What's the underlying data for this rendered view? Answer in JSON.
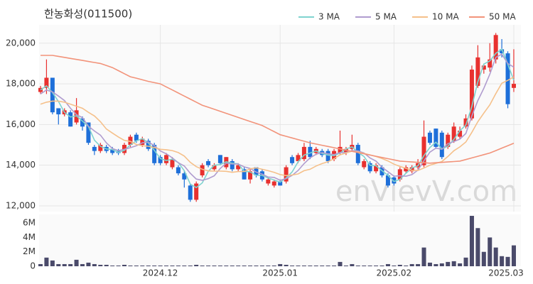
{
  "chart_data": [
    {
      "type": "candlestick",
      "title": "한농화성(011500)",
      "open": [
        17600,
        17800,
        18300,
        16800,
        16500,
        16600,
        16100,
        16300,
        16100,
        14900,
        14700,
        14900,
        14800,
        14700,
        14600,
        15000,
        15500,
        15000,
        15200,
        15000,
        14400,
        14100,
        13900,
        13900,
        13600,
        13000,
        12300,
        13500,
        14200,
        13800,
        14500,
        13900,
        14200,
        13800,
        13800,
        13300,
        13900,
        13700,
        13100,
        13000,
        13200,
        13200,
        14400,
        14200,
        14300,
        14900,
        14600,
        14700,
        14700,
        14300,
        14600,
        14600,
        14800,
        15000,
        13900,
        14100,
        13700,
        13900,
        13500,
        13400,
        13300,
        13700,
        13700,
        13900,
        14000,
        15600,
        15800,
        15600,
        14900,
        15200,
        15400,
        15900,
        16300,
        17900,
        18700,
        18800,
        19200,
        19700,
        19500,
        17800
      ],
      "high": [
        17900,
        19200,
        18300,
        16800,
        16800,
        16700,
        17300,
        16400,
        16100,
        15000,
        15100,
        15000,
        14900,
        14800,
        15100,
        15500,
        15600,
        15400,
        15300,
        15100,
        14500,
        14600,
        14400,
        14000,
        13700,
        13100,
        13200,
        14100,
        14300,
        14100,
        14500,
        14400,
        14300,
        14100,
        13900,
        13800,
        13900,
        13800,
        13400,
        13300,
        13300,
        14000,
        14500,
        14600,
        15100,
        15200,
        14900,
        14800,
        14800,
        14800,
        15700,
        14900,
        15500,
        15100,
        14300,
        14200,
        14100,
        14000,
        13600,
        13500,
        13900,
        14000,
        14000,
        14300,
        16200,
        15700,
        15800,
        15700,
        15600,
        16100,
        15900,
        16500,
        18900,
        19900,
        19000,
        20000,
        20500,
        20200,
        19600,
        19700
      ],
      "low": [
        17500,
        17500,
        16500,
        16000,
        16400,
        15900,
        16000,
        15700,
        15000,
        14500,
        14600,
        14600,
        14500,
        14500,
        14500,
        14900,
        15100,
        14900,
        14700,
        14000,
        14000,
        14000,
        13800,
        13500,
        12900,
        12200,
        12200,
        13400,
        13900,
        13700,
        14000,
        13800,
        13700,
        13700,
        13300,
        13100,
        13400,
        13200,
        13000,
        12900,
        13000,
        13100,
        14000,
        14100,
        14200,
        14300,
        14500,
        14400,
        14100,
        14200,
        14500,
        14500,
        14700,
        14000,
        13800,
        13600,
        13600,
        13400,
        12900,
        13000,
        13200,
        13600,
        13600,
        13800,
        13900,
        15000,
        14800,
        14300,
        14800,
        15100,
        15300,
        15800,
        16200,
        17800,
        18500,
        18600,
        19000,
        19300,
        16800,
        17600
      ],
      "close": [
        17800,
        18300,
        16600,
        16500,
        16700,
        15900,
        16700,
        15900,
        15100,
        14700,
        15000,
        14700,
        14600,
        14600,
        15000,
        15400,
        15200,
        15300,
        14800,
        14100,
        14100,
        14500,
        14300,
        13600,
        13300,
        12300,
        13100,
        14000,
        14000,
        14000,
        14100,
        14400,
        13800,
        14000,
        13300,
        13700,
        13500,
        13300,
        13300,
        13200,
        13000,
        13900,
        14100,
        14500,
        14900,
        14400,
        14800,
        14500,
        14200,
        14700,
        14900,
        14800,
        15000,
        14100,
        14200,
        13700,
        14000,
        13500,
        13000,
        13100,
        13800,
        13900,
        13900,
        14100,
        15400,
        15100,
        14900,
        14400,
        15500,
        15900,
        15700,
        16300,
        18700,
        19300,
        18900,
        19200,
        20400,
        19500,
        17000,
        18000
      ],
      "up_color": "#e8312f",
      "down_color": "#1e6fd9",
      "series": [
        {
          "name": "3 MA",
          "color": "#7fd3cf",
          "values": [
            17700,
            17900,
            17570,
            17130,
            16600,
            16370,
            16430,
            16170,
            15900,
            15230,
            14930,
            14800,
            14770,
            14630,
            14730,
            15000,
            15200,
            15300,
            15100,
            14730,
            14330,
            14230,
            14300,
            14130,
            13730,
            13070,
            12900,
            13130,
            13700,
            14000,
            14030,
            14170,
            14100,
            14070,
            13700,
            13670,
            13500,
            13500,
            13370,
            13270,
            13170,
            13370,
            13670,
            14170,
            14500,
            14600,
            14700,
            14570,
            14500,
            14470,
            14600,
            14800,
            14900,
            14630,
            14430,
            14000,
            13970,
            13730,
            13500,
            13200,
            13300,
            13600,
            13870,
            13970,
            14470,
            14870,
            15130,
            14800,
            14930,
            15270,
            15700,
            15970,
            16900,
            18100,
            18970,
            19130,
            19500,
            19700,
            18970,
            18170
          ]
        },
        {
          "name": "5 MA",
          "color": "#b09ccf",
          "values": [
            17500,
            17700,
            17600,
            17400,
            17180,
            16800,
            16480,
            16340,
            15920,
            15680,
            15480,
            15100,
            14820,
            14720,
            14780,
            14860,
            14960,
            15100,
            15140,
            14960,
            14700,
            14560,
            14360,
            14120,
            13960,
            13600,
            13320,
            13260,
            13340,
            13480,
            13840,
            14100,
            14060,
            14060,
            13920,
            13840,
            13660,
            13560,
            13420,
            13400,
            13260,
            13340,
            13500,
            13740,
            14080,
            14360,
            14540,
            14620,
            14560,
            14520,
            14620,
            14620,
            14720,
            14700,
            14600,
            14360,
            14200,
            13900,
            13680,
            13460,
            13480,
            13460,
            13540,
            13760,
            14220,
            14640,
            14840,
            14780,
            15060,
            15160,
            15280,
            15560,
            16420,
            17180,
            17780,
            18480,
            19300,
            19460,
            19000,
            18820
          ]
        },
        {
          "name": "10 MA",
          "color": "#f5c08a",
          "values": [
            17000,
            17100,
            17150,
            17150,
            17100,
            17000,
            16900,
            16800,
            16600,
            16420,
            16140,
            15780,
            15580,
            15390,
            15220,
            15170,
            15020,
            14960,
            14930,
            14870,
            14780,
            14760,
            14720,
            14620,
            14450,
            14140,
            13930,
            13800,
            13720,
            13710,
            13710,
            13700,
            13650,
            13690,
            13690,
            13830,
            13870,
            13800,
            13730,
            13650,
            13540,
            13490,
            13520,
            13570,
            13730,
            13800,
            13960,
            14080,
            14170,
            14320,
            14510,
            14600,
            14690,
            14650,
            14580,
            14510,
            14430,
            14330,
            14210,
            14050,
            13940,
            13850,
            13740,
            13740,
            13860,
            14000,
            14090,
            14180,
            14430,
            14710,
            14900,
            15140,
            15620,
            16140,
            16560,
            16970,
            17520,
            18030,
            18170,
            18340
          ]
        },
        {
          "name": "50 MA",
          "color": "#f2937a",
          "values": [
            19400,
            19400,
            19400,
            19350,
            19300,
            19250,
            19200,
            19150,
            19100,
            19050,
            19000,
            18900,
            18800,
            18650,
            18500,
            18350,
            18280,
            18200,
            18120,
            18060,
            18000,
            17850,
            17700,
            17550,
            17400,
            17250,
            17100,
            16950,
            16850,
            16750,
            16650,
            16550,
            16450,
            16350,
            16250,
            16150,
            16050,
            15950,
            15800,
            15650,
            15500,
            15420,
            15340,
            15260,
            15180,
            15100,
            15040,
            14980,
            14920,
            14860,
            14800,
            14740,
            14680,
            14620,
            14560,
            14500,
            14440,
            14380,
            14320,
            14260,
            14200,
            14180,
            14160,
            14140,
            14120,
            14100,
            14120,
            14140,
            14160,
            14180,
            14200,
            14280,
            14360,
            14440,
            14520,
            14600,
            14720,
            14840,
            14960,
            15080
          ]
        }
      ],
      "ylim": [
        11720,
        20900
      ],
      "yticks": [
        {
          "value": 12000,
          "label": "12,000"
        },
        {
          "value": 14000,
          "label": "14,000"
        },
        {
          "value": 16000,
          "label": "16,000"
        },
        {
          "value": 18000,
          "label": "18,000"
        },
        {
          "value": 20000,
          "label": "20,000"
        }
      ],
      "grid": true,
      "legend": "top-right",
      "watermark": "enVievV.com"
    },
    {
      "type": "bar",
      "color": "#4a4a6a",
      "categories": [
        null,
        null,
        null,
        null,
        null,
        null,
        null,
        null,
        null,
        null,
        null,
        null,
        null,
        null,
        null,
        null,
        null,
        null,
        null,
        null,
        "2024.12",
        null,
        null,
        null,
        null,
        null,
        null,
        null,
        null,
        null,
        null,
        null,
        null,
        null,
        null,
        null,
        null,
        null,
        null,
        null,
        "2025.01",
        null,
        null,
        null,
        null,
        null,
        null,
        null,
        null,
        null,
        null,
        null,
        null,
        null,
        null,
        null,
        null,
        null,
        null,
        "2025.02",
        null,
        null,
        null,
        null,
        null,
        null,
        null,
        null,
        null,
        null,
        null,
        null,
        null,
        null,
        null,
        null,
        null,
        null,
        null,
        "2025.03"
      ],
      "values": [
        300000,
        1200000,
        800000,
        300000,
        300000,
        300000,
        900000,
        300000,
        500000,
        300000,
        200000,
        200000,
        100000,
        100000,
        200000,
        100000,
        100000,
        100000,
        100000,
        100000,
        100000,
        100000,
        100000,
        100000,
        100000,
        100000,
        200000,
        100000,
        100000,
        100000,
        100000,
        100000,
        100000,
        100000,
        100000,
        100000,
        100000,
        100000,
        100000,
        100000,
        300000,
        200000,
        100000,
        100000,
        100000,
        100000,
        100000,
        100000,
        100000,
        100000,
        600000,
        100000,
        300000,
        100000,
        100000,
        100000,
        100000,
        100000,
        300000,
        100000,
        200000,
        100000,
        300000,
        300000,
        2600000,
        500000,
        300000,
        400000,
        600000,
        700000,
        400000,
        1200000,
        7000000,
        5300000,
        2000000,
        4000000,
        2600000,
        1400000,
        1300000,
        2900000
      ],
      "ylim": [
        0,
        7200000
      ],
      "yticks": [
        0,
        {
          "value": 2000000,
          "label": "2M"
        },
        {
          "value": 4000000,
          "label": "4M"
        },
        {
          "value": 6000000,
          "label": "6M"
        }
      ]
    }
  ]
}
